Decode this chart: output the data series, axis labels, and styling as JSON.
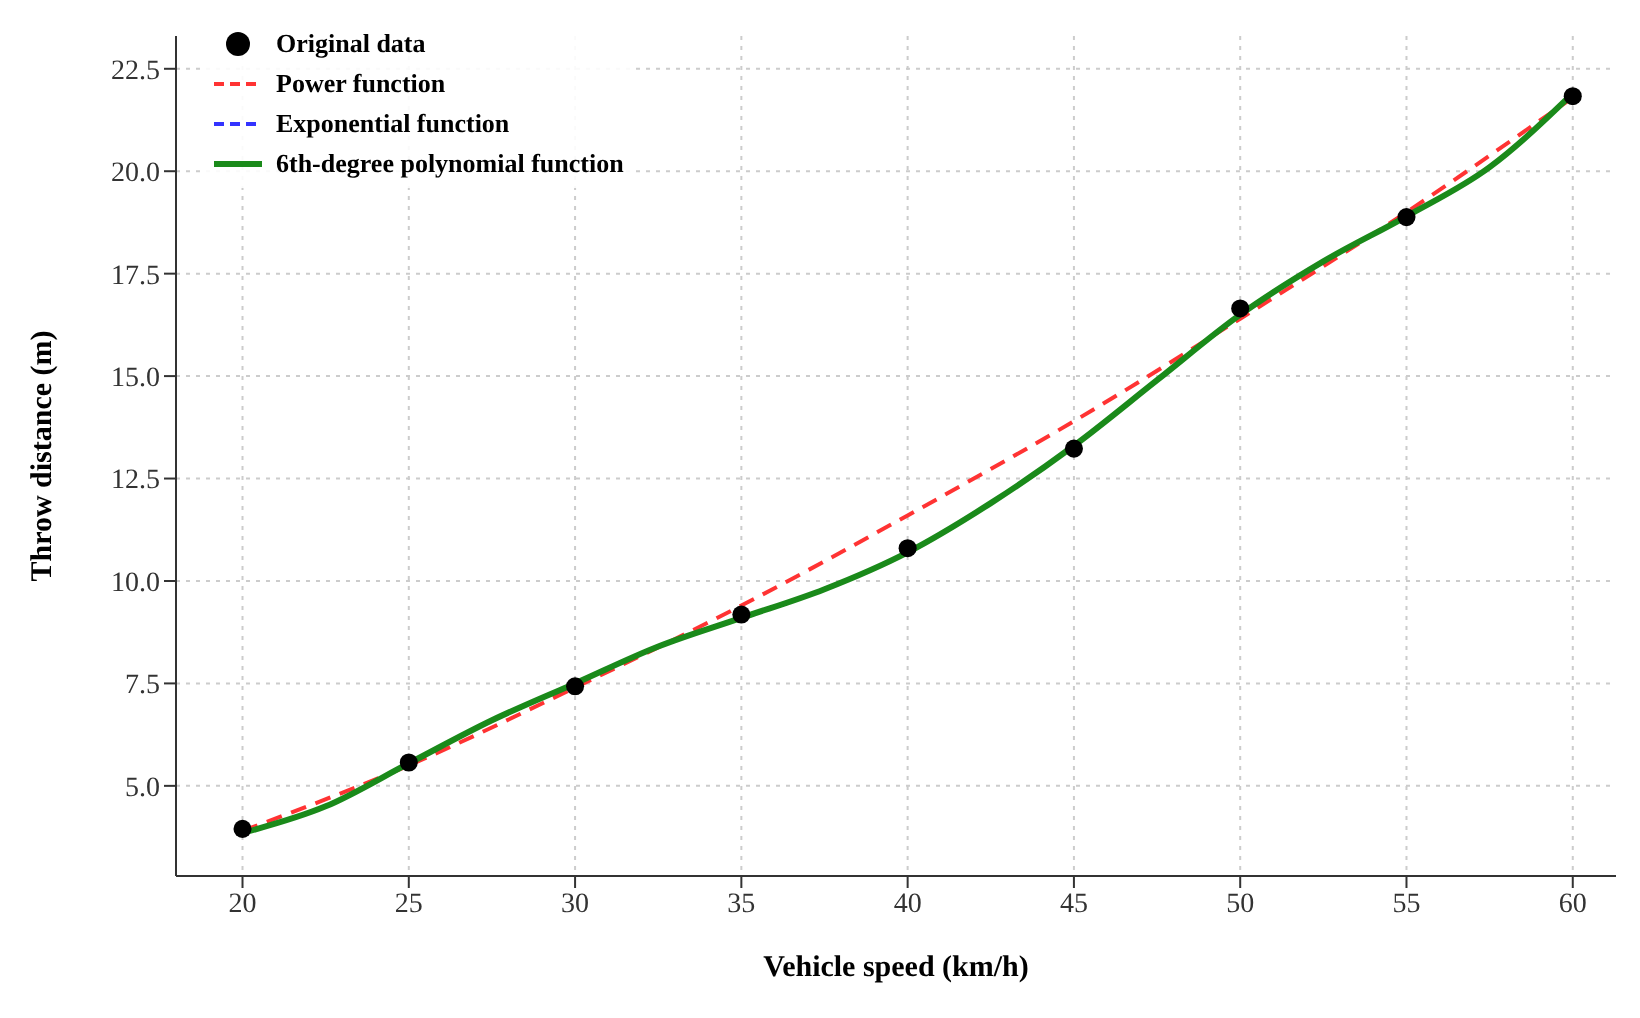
{
  "chart_data": {
    "type": "line",
    "xlabel": "Vehicle speed (km/h)",
    "ylabel": "Throw distance (m)",
    "xlim": [
      18,
      61.3
    ],
    "xticks": [
      20,
      25,
      30,
      35,
      40,
      45,
      50,
      55,
      60
    ],
    "ylim": [
      2.8,
      23.3
    ],
    "yticks": [
      {
        "value": 5,
        "label": "5.0"
      },
      {
        "value": 7.5,
        "label": "7.5"
      },
      {
        "value": 10,
        "label": "10.0"
      },
      {
        "value": 12.5,
        "label": "12.5"
      },
      {
        "value": 15,
        "label": "15.0"
      },
      {
        "value": 17.5,
        "label": "17.5"
      },
      {
        "value": 20,
        "label": "20.0"
      },
      {
        "value": 22.5,
        "label": "22.5"
      }
    ],
    "grid": true,
    "legend": "top left",
    "series": [
      {
        "name": "Original data",
        "type": "scatter",
        "marker": "circle",
        "color": "#000000",
        "x": [
          20,
          25,
          30,
          35,
          40,
          45,
          50,
          55,
          60
        ],
        "values": [
          3.95,
          5.57,
          7.43,
          9.18,
          10.8,
          13.23,
          16.65,
          18.88,
          21.83
        ]
      },
      {
        "name": "Power function",
        "type": "line",
        "line_style": "dashed",
        "color": "#ff3333",
        "x": [
          20,
          25,
          30,
          35,
          40,
          45,
          50,
          55,
          60
        ],
        "values": [
          3.9,
          5.5,
          7.4,
          9.4,
          11.6,
          13.9,
          16.4,
          19.0,
          21.8
        ]
      },
      {
        "name": "Exponential function",
        "type": "line",
        "line_style": "dashed",
        "color": "#3333ff"
      },
      {
        "name": "6th-degree polynomial function",
        "type": "line",
        "line_style": "solid",
        "color": "#1a8a1a",
        "x": [
          20,
          22.5,
          25,
          27.5,
          30,
          32.5,
          35,
          37.5,
          40,
          42.5,
          45,
          47.5,
          50,
          52.5,
          55,
          57.5,
          60
        ],
        "values": [
          3.85,
          4.5,
          5.55,
          6.6,
          7.5,
          8.4,
          9.1,
          9.8,
          10.7,
          11.9,
          13.3,
          14.9,
          16.5,
          17.8,
          18.9,
          20.1,
          21.9
        ]
      }
    ]
  }
}
